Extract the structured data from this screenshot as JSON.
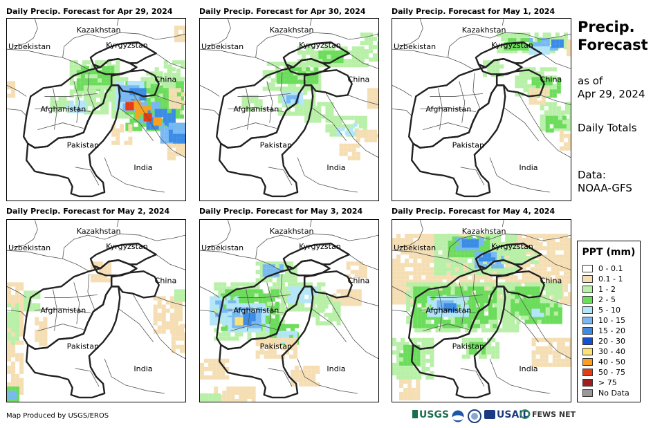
{
  "panels": [
    {
      "title": "Daily Precip. Forecast for Apr 29, 2024"
    },
    {
      "title": "Daily Precip. Forecast for Apr 30, 2024"
    },
    {
      "title": "Daily Precip. Forecast for May 1, 2024"
    },
    {
      "title": "Daily Precip. Forecast for May 2, 2024"
    },
    {
      "title": "Daily Precip. Forecast for May 3, 2024"
    },
    {
      "title": "Daily Precip. Forecast for May 4, 2024"
    }
  ],
  "map_labels": {
    "kazakhstan": "Kazakhstan",
    "uzbekistan": "Uzbekistan",
    "kyrgyzstan": "Kyrgyzstan",
    "china": "China",
    "afghanistan": "Afghanistan",
    "pakistan": "Pakistan",
    "india": "India"
  },
  "side": {
    "title_line1": "Precip.",
    "title_line2": "Forecast",
    "asof_line1": "as of",
    "asof_line2": "Apr 29, 2024",
    "totals": "Daily Totals",
    "data_line1": "Data:",
    "data_line2": "NOAA-GFS"
  },
  "legend": {
    "title": "PPT (mm)",
    "items": [
      {
        "label": "0 - 0.1",
        "color": "#ffffff"
      },
      {
        "label": "0.1 - 1",
        "color": "#f5deb3"
      },
      {
        "label": "1 - 2",
        "color": "#b8f0a8"
      },
      {
        "label": "2 - 5",
        "color": "#6cdc5c"
      },
      {
        "label": "5 - 10",
        "color": "#b4e6fa"
      },
      {
        "label": "10 - 15",
        "color": "#78b8f4"
      },
      {
        "label": "15 - 20",
        "color": "#3c8ce6"
      },
      {
        "label": "20 - 30",
        "color": "#1450d2"
      },
      {
        "label": "30 - 40",
        "color": "#fae178"
      },
      {
        "label": "40 - 50",
        "color": "#faa01e"
      },
      {
        "label": "50 - 75",
        "color": "#e63c14"
      },
      {
        "label": "> 75",
        "color": "#a01e1e"
      },
      {
        "label": "No Data",
        "color": "#999999"
      }
    ]
  },
  "footer": {
    "produced_by": "Map Produced by USGS/EROS",
    "logos": {
      "usgs": "USGS",
      "usaid": "USAID",
      "fewsnet": "FEWS NET"
    }
  }
}
